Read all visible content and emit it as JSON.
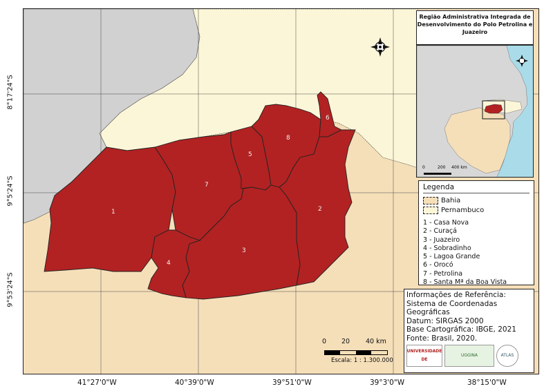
{
  "title": "Região Administrativa Integrada de Desenvolvimento do Polo Petrolina e Juazeiro",
  "legend": {
    "title": "Legenda",
    "states": [
      {
        "label": "Bahia",
        "color": "#f5dfb9"
      },
      {
        "label": "Pernambuco",
        "color": "#fcf6d8"
      }
    ],
    "municipalities": [
      "1 - Casa Nova",
      "2 - Curaçá",
      "3 - Juazeiro",
      "4 - Sobradinho",
      "5 - Lagoa Grande",
      "6 - Orocó",
      "7 - Petrolina",
      "8 - Santa Mª da Boa Vista"
    ]
  },
  "map": {
    "region_color": "#b22222",
    "outside_color": "#d1d1d1",
    "labels": [
      "1",
      "2",
      "3",
      "4",
      "5",
      "6",
      "7",
      "8"
    ]
  },
  "grid": {
    "lon_labels": [
      "41°27'0\"W",
      "40°39'0\"W",
      "39°51'0\"W",
      "39°3'0\"W",
      "38°15'0\"W"
    ],
    "lat_labels": [
      "8°17'24\"S",
      "9°5'24\"S",
      "9°53'24\"S"
    ]
  },
  "inset": {
    "scale": {
      "ticks": [
        "0",
        "200",
        "400 km"
      ]
    }
  },
  "scale": {
    "ticks": [
      "0",
      "20",
      "40 km"
    ],
    "text": "Escala: 1 : 1.300.000"
  },
  "reference": {
    "heading": "Informações de Referência:",
    "lines": [
      "Sistema de Coordenadas Geográficas",
      "Datum: SIRGAS 2000",
      "Base Cartográfica: IBGE, 2021",
      "Fonte: Brasil, 2020."
    ],
    "logos": [
      "UPE UNIVERSIDADE DE PERNAMBUCO",
      "UGGINA",
      "ATLAS"
    ]
  },
  "icons": [
    "north-arrow-icon",
    "inset-north-arrow-icon"
  ]
}
